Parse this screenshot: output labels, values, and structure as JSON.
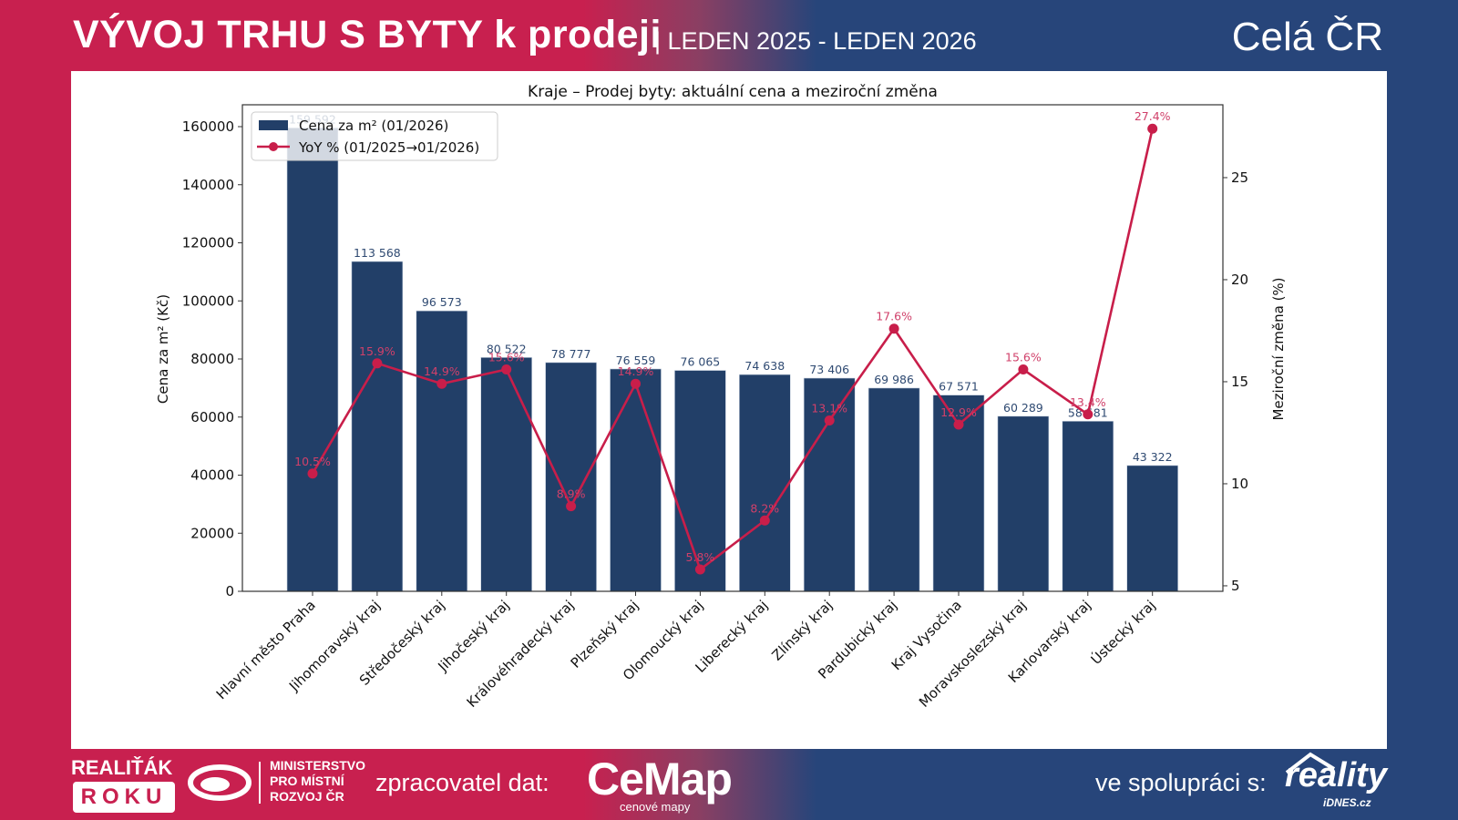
{
  "header": {
    "title": "VÝVOJ TRHU S BYTY k prodeji",
    "subtitle": "| LEDEN 2025 - LEDEN 2026",
    "region": "Celá ČR"
  },
  "colors": {
    "brand_red": "#c8204f",
    "brand_blue": "#27457a",
    "bar": "#223f68",
    "line": "#c81e4a",
    "bar_label": "#2f4a72",
    "line_label": "#d0406a"
  },
  "footer": {
    "award_line1": "REALIŤÁK",
    "award_line2": "ROKU",
    "ministry": [
      "MINISTERSTVO",
      "PRO MÍSTNÍ",
      "ROZVOJ ČR"
    ],
    "processor_label": "zpracovatel dat:",
    "processor_logo": "CeMap",
    "processor_logo_sub": "cenové mapy",
    "partner_label": "ve spolupráci s:",
    "partner_logo": "reality",
    "partner_logo_sub": "iDNES.cz"
  },
  "chart_data": {
    "type": "bar",
    "title": "Kraje – Prodej byty: aktuální cena a meziroční změna",
    "xlabel": "",
    "ylabel": "Cena za m² (Kč)",
    "y2label": "Meziroční změna (%)",
    "ylim": [
      0,
      167530
    ],
    "y2lim": [
      4.73,
      28.57
    ],
    "yticks": [
      0,
      20000,
      40000,
      60000,
      80000,
      100000,
      120000,
      140000,
      160000
    ],
    "y2ticks": [
      5,
      10,
      15,
      20,
      25
    ],
    "grid": false,
    "legend_position": "top-left",
    "categories": [
      "Hlavní město Praha",
      "Jihomoravský kraj",
      "Středočeský kraj",
      "Jihočeský kraj",
      "Královéhradecký kraj",
      "Plzeňský kraj",
      "Olomoucký kraj",
      "Liberecký kraj",
      "Zlínský kraj",
      "Pardubický kraj",
      "Kraj Vysočina",
      "Moravskoslezský kraj",
      "Karlovarský kraj",
      "Ústecký kraj"
    ],
    "series": [
      {
        "name": "Cena za m² (01/2026)",
        "type": "bar",
        "axis": "left",
        "values": [
          159592,
          113568,
          96573,
          80522,
          78777,
          76559,
          76065,
          74638,
          73406,
          69986,
          67571,
          60289,
          58581,
          43322
        ],
        "labels": [
          "159 592",
          "113 568",
          "96 573",
          "80 522",
          "78 777",
          "76 559",
          "76 065",
          "74 638",
          "73 406",
          "69 986",
          "67 571",
          "60 289",
          "58 581",
          "43 322"
        ]
      },
      {
        "name": "YoY % (01/2025→01/2026)",
        "type": "line",
        "axis": "right",
        "values": [
          10.5,
          15.9,
          14.9,
          15.6,
          8.9,
          14.9,
          5.8,
          8.2,
          13.1,
          17.6,
          12.9,
          15.6,
          13.4,
          27.4
        ],
        "labels": [
          "10.5%",
          "15.9%",
          "14.9%",
          "15.6%",
          "8.9%",
          "14.9%",
          "5.8%",
          "8.2%",
          "13.1%",
          "17.6%",
          "12.9%",
          "15.6%",
          "13.4%",
          "27.4%"
        ]
      }
    ]
  }
}
